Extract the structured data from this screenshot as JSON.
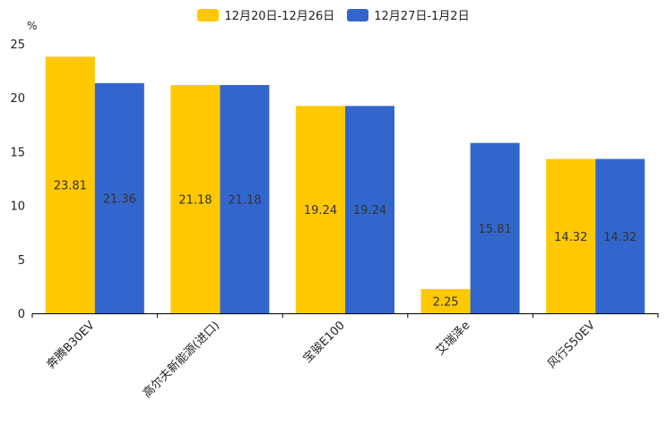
{
  "chart_data": {
    "type": "bar",
    "title": "",
    "ylabel": "%",
    "xlabel": "",
    "ylim": [
      0,
      25
    ],
    "yticks": [
      0,
      5,
      10,
      15,
      20,
      25
    ],
    "grid": false,
    "legend_position": "top-center",
    "categories": [
      "奔腾B30EV",
      "高尔夫新能源(进口)",
      "宝骏E100",
      "艾瑞泽e",
      "风行S50EV"
    ],
    "series": [
      {
        "name": "12月20日-12月26日",
        "color": "#FFC800",
        "values": [
          23.81,
          21.18,
          19.24,
          2.25,
          14.32
        ]
      },
      {
        "name": "12月27日-1月2日",
        "color": "#3366CC",
        "values": [
          21.36,
          21.18,
          19.24,
          15.81,
          14.32
        ]
      }
    ]
  }
}
